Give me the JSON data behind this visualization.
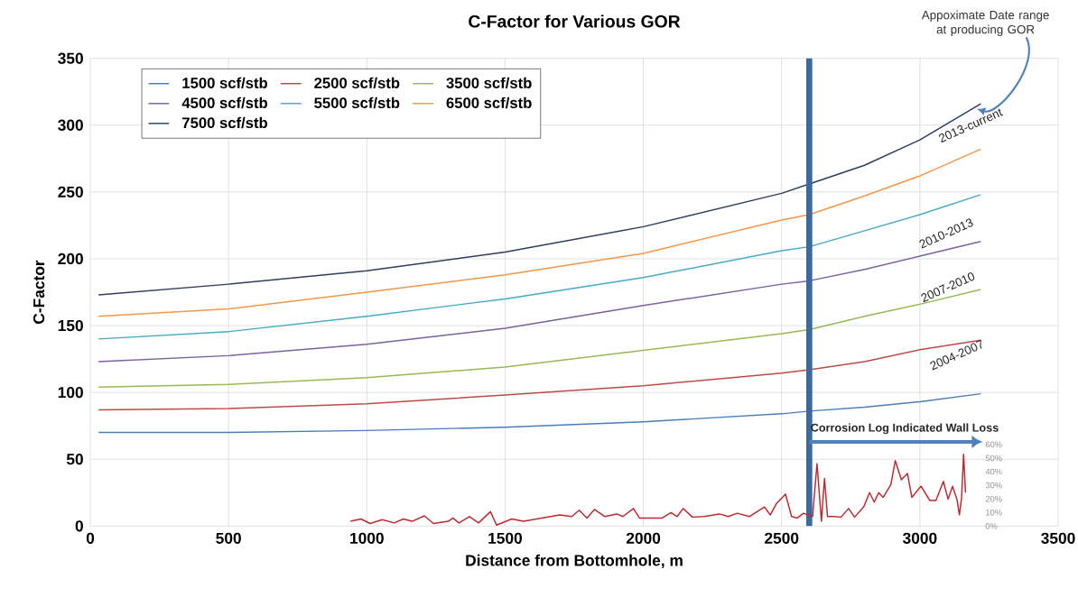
{
  "chart_data": {
    "type": "line",
    "title": "C-Factor for Various  GOR",
    "xlabel": "Distance from Bottomhole, m",
    "ylabel": "C-Factor",
    "x": [
      30,
      500,
      1000,
      1500,
      2000,
      2500,
      2600,
      2800,
      3000,
      3220
    ],
    "series": [
      {
        "name": "1500 scf/stb",
        "color": "#4a7ebb",
        "values": [
          70,
          70,
          71.5,
          74,
          78,
          84,
          86,
          89,
          93,
          99
        ]
      },
      {
        "name": "2500 scf/stb",
        "color": "#be4b48",
        "values": [
          87,
          88,
          91.5,
          98,
          105,
          114.5,
          117,
          123,
          132,
          139
        ]
      },
      {
        "name": "3500 scf/stb",
        "color": "#98b954",
        "values": [
          104,
          106,
          111,
          119,
          131.5,
          144,
          147,
          157,
          166,
          177
        ]
      },
      {
        "name": "4500 scf/stb",
        "color": "#7d60a0",
        "values": [
          123,
          127.5,
          136,
          148,
          165,
          181,
          183.5,
          192,
          202,
          213
        ]
      },
      {
        "name": "5500 scf/stb",
        "color": "#46aac5",
        "values": [
          140,
          145.5,
          157,
          170,
          186,
          206,
          209,
          221,
          233,
          248
        ]
      },
      {
        "name": "6500 scf/stb",
        "color": "#f79646",
        "values": [
          157,
          162.5,
          175,
          188,
          204,
          229,
          233,
          247,
          262,
          282
        ]
      },
      {
        "name": "7500 scf/stb",
        "color": "#2c3e5e",
        "values": [
          173,
          181,
          191,
          205,
          224,
          249,
          256,
          270,
          289,
          316
        ]
      },
      {
        "color": "#c0282d",
        "axis": "y2",
        "x": [
          941,
          979,
          1012,
          1056,
          1099,
          1132,
          1164,
          1208,
          1241,
          1295,
          1311,
          1333,
          1371,
          1404,
          1447,
          1469,
          1524,
          1567,
          1632,
          1698,
          1741,
          1768,
          1796,
          1823,
          1861,
          1904,
          1926,
          1964,
          1986,
          2068,
          2100,
          2122,
          2144,
          2177,
          2220,
          2275,
          2307,
          2340,
          2383,
          2438,
          2459,
          2481,
          2514,
          2536,
          2557,
          2579,
          2612,
          2628,
          2644,
          2655,
          2666,
          2688,
          2715,
          2742,
          2764,
          2797,
          2818,
          2835,
          2851,
          2867,
          2895,
          2911,
          2933,
          2955,
          2971,
          3004,
          3036,
          3058,
          3085,
          3102,
          3118,
          3134,
          3143,
          3151,
          3158,
          3165
        ],
        "values": [
          3.5,
          5.2,
          1.9,
          4.7,
          2.3,
          5.2,
          3.5,
          7.5,
          1.9,
          3.5,
          5.9,
          2.3,
          7,
          2.3,
          10.6,
          0.7,
          5.2,
          3.5,
          5.9,
          8.2,
          7,
          11.7,
          5.9,
          12.2,
          7,
          8.9,
          7,
          12.9,
          5.9,
          5.9,
          9.9,
          7,
          12.9,
          6.6,
          7,
          8.9,
          7,
          9.4,
          7,
          14.1,
          8.2,
          16.4,
          23.5,
          7,
          5.9,
          9.4,
          7,
          45.8,
          3.5,
          35,
          7,
          7,
          6.6,
          12.9,
          6.6,
          14.1,
          24.6,
          17.6,
          24.6,
          21.1,
          30.5,
          48.1,
          34,
          38.7,
          21.1,
          29.3,
          18.8,
          18.8,
          32.9,
          19.7,
          29.3,
          19.7,
          8.2,
          21.1,
          52.8,
          24.6
        ]
      }
    ],
    "xlim": [
      0,
      3500
    ],
    "ylim": [
      0,
      350
    ],
    "y2lim": [
      0,
      344
    ],
    "xticks": [
      0,
      500,
      1000,
      1500,
      2000,
      2500,
      3000,
      3500
    ],
    "yticks": [
      0,
      50,
      100,
      150,
      200,
      250,
      300,
      350
    ],
    "y2ticks": [
      {
        "value": 0,
        "label": "0%"
      },
      {
        "value": 10,
        "label": "10%"
      },
      {
        "value": 20,
        "label": "20%"
      },
      {
        "value": 30,
        "label": "30%"
      },
      {
        "value": 40,
        "label": "40%"
      },
      {
        "value": 50,
        "label": "50%"
      },
      {
        "value": 60,
        "label": "60%"
      }
    ],
    "grid": true,
    "legend": "top left",
    "ref_lines": [
      {
        "axis": "x",
        "value": 2600,
        "color": "#3c6aa0"
      }
    ],
    "annotations": [
      "Appoximate Date range at producing GOR",
      "2013-current",
      "2010-2013",
      "2007-2010",
      "2004-2007",
      {
        "text": "Corrosion Log Indicated Wall Loss",
        "x": 2600,
        "y": 63
      }
    ]
  }
}
